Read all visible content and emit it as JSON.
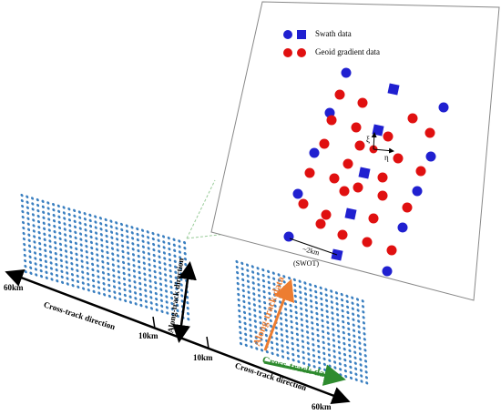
{
  "legend": {
    "swath": "Swath data",
    "geoid": "Geoid gradient data"
  },
  "inset": {
    "xi": "ξ",
    "eta": "η",
    "spacing": "~2km",
    "mission": "(SWOT)"
  },
  "left_grid": {
    "extent": "60km",
    "axis": "Cross-track direction",
    "tick": "10km"
  },
  "along_track": "Along-track direction",
  "right_grid": {
    "tick": "10km",
    "axis": "Cross-track direction",
    "extent": "60km",
    "along_label": "Along-track data",
    "cross_label": "Cross-track data"
  }
}
